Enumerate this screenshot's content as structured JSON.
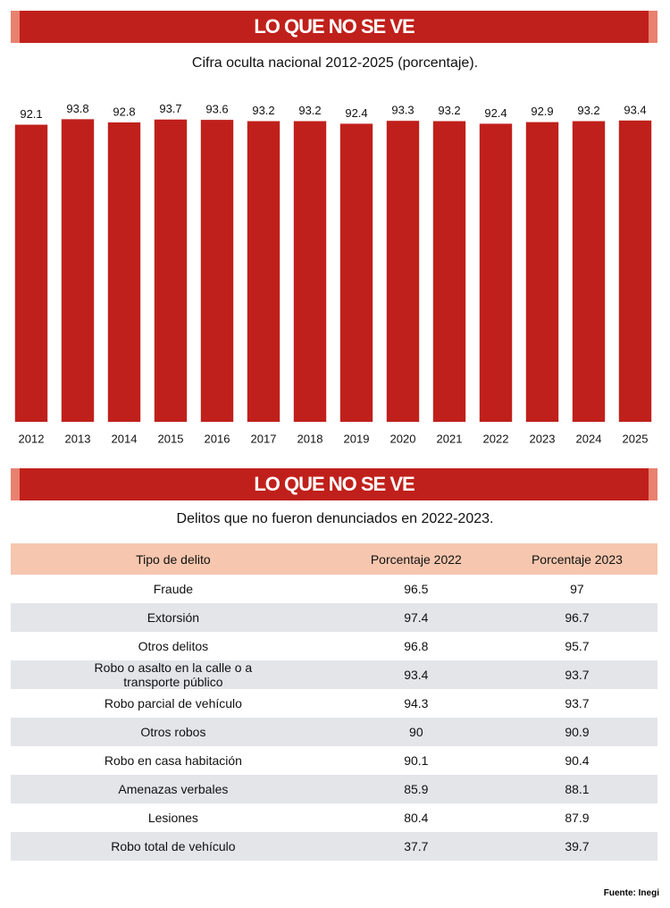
{
  "header": {
    "title": "LO QUE NO SE VE"
  },
  "chart_data": {
    "type": "bar",
    "title": "Cifra oculta nacional 2012-2025 (porcentaje).",
    "categories": [
      "2012",
      "2013",
      "2014",
      "2015",
      "2016",
      "2017",
      "2018",
      "2019",
      "2020",
      "2021",
      "2022",
      "2023",
      "2024",
      "2025"
    ],
    "values": [
      92.1,
      93.8,
      92.8,
      93.7,
      93.6,
      93.2,
      93.2,
      92.4,
      93.3,
      93.2,
      92.4,
      92.9,
      93.2,
      93.4
    ],
    "color": "#c0201b",
    "ylim": [
      0,
      100
    ]
  },
  "table_section": {
    "title": "LO QUE NO SE VE",
    "subtitle": "Delitos que no fueron denunciados en 2022-2023.",
    "columns": [
      "Tipo de delito",
      "Porcentaje 2022",
      "Porcentaje 2023"
    ],
    "rows": [
      [
        "Fraude",
        "96.5",
        "97"
      ],
      [
        "Extorsión",
        "97.4",
        "96.7"
      ],
      [
        "Otros delitos",
        "96.8",
        "95.7"
      ],
      [
        "Robo o asalto en la calle o a transporte público",
        "93.4",
        "93.7"
      ],
      [
        "Robo parcial de vehículo",
        "94.3",
        "93.7"
      ],
      [
        "Otros robos",
        "90",
        "90.9"
      ],
      [
        "Robo en casa habitación",
        "90.1",
        "90.4"
      ],
      [
        "Amenazas verbales",
        "85.9",
        "88.1"
      ],
      [
        "Lesiones",
        "80.4",
        "87.9"
      ],
      [
        "Robo total de vehículo",
        "37.7",
        "39.7"
      ]
    ]
  },
  "source": "Fuente: Inegi"
}
